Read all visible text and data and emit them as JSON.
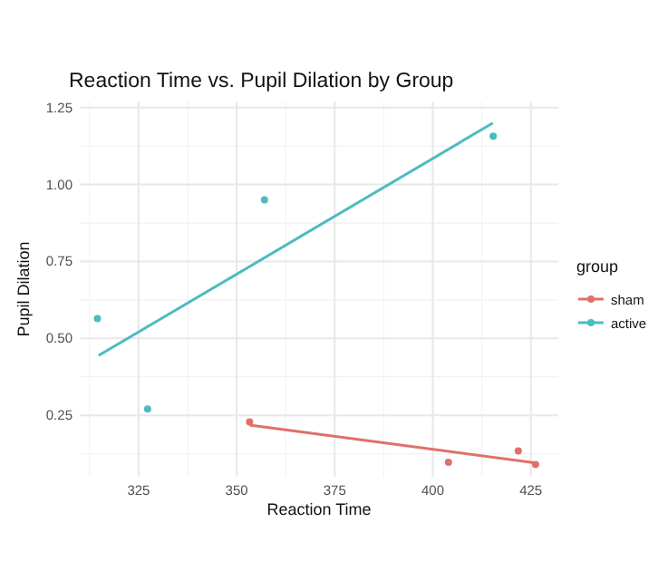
{
  "chart_data": {
    "type": "scatter",
    "title": "Reaction Time vs. Pupil Dilation by Group",
    "xlabel": "Reaction Time",
    "ylabel": "Pupil Dilation",
    "legend_title": "group",
    "series": [
      {
        "name": "sham",
        "color": "#e0706a",
        "x": [
          353.3,
          404,
          421.8,
          426.2
        ],
        "values": [
          0.228,
          0.097,
          0.134,
          0.09
        ]
      },
      {
        "name": "active",
        "color": "#4bbcc0",
        "x": [
          314.5,
          327.3,
          357.1,
          415.4
        ],
        "values": [
          0.564,
          0.27,
          0.95,
          1.157
        ]
      },
      {
        "type": "line",
        "marker": "none",
        "color": "#e0706a",
        "x": [
          353.3,
          426.2
        ],
        "values": [
          0.218,
          0.095
        ]
      },
      {
        "type": "line",
        "marker": "none",
        "color": "#4bbcc0",
        "x": [
          314.8,
          415.3
        ],
        "values": [
          0.444,
          1.2
        ]
      }
    ],
    "xlim": [
      310,
      432
    ],
    "ylim": [
      0.05,
      1.27
    ],
    "xticks": [
      325,
      350,
      375,
      400,
      425
    ],
    "yticks": [
      {
        "value": 0.25,
        "label": "0.25"
      },
      {
        "value": 0.5,
        "label": "0.50"
      },
      {
        "value": 0.75,
        "label": "0.75"
      },
      {
        "value": 1,
        "label": "1.00"
      },
      {
        "value": 1.25,
        "label": "1.25"
      }
    ],
    "grid": true,
    "legend": "right",
    "marker": "circle"
  }
}
